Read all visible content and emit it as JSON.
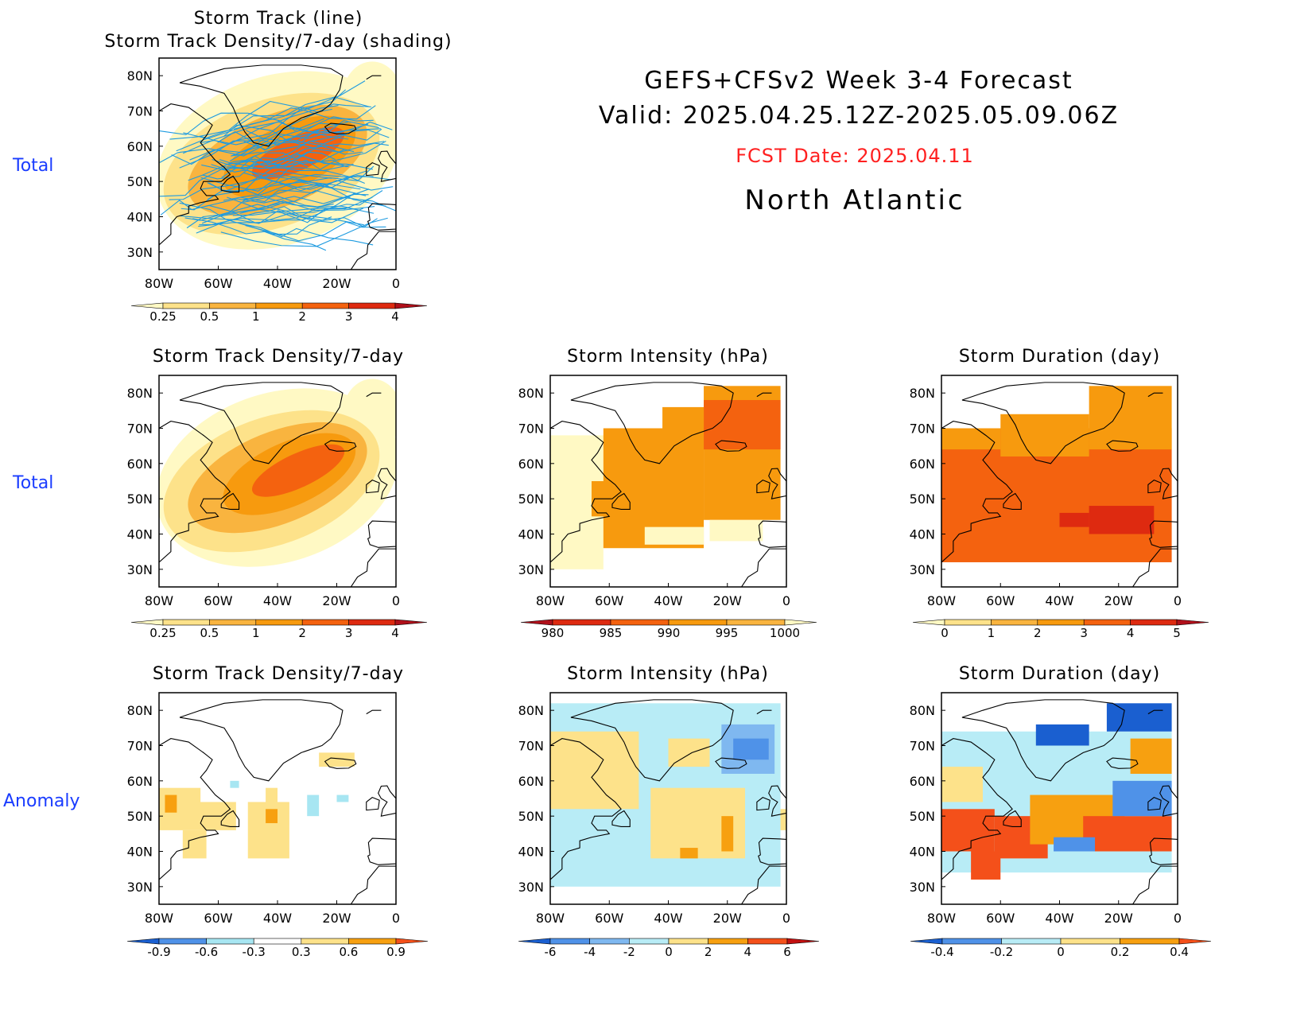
{
  "header": {
    "line1": "GEFS+CFSv2 Week 3-4 Forecast",
    "line2": "Valid: 2025.04.25.12Z-2025.05.09.06Z",
    "fcst": "FCST Date: 2025.04.11",
    "region": "North Atlantic",
    "fcst_color": "#ff2020"
  },
  "row_labels": [
    "Total",
    "Total",
    "Anomaly"
  ],
  "axis": {
    "lat_ticks": [
      "30N",
      "40N",
      "50N",
      "60N",
      "70N",
      "80N"
    ],
    "lon_ticks": [
      "80W",
      "60W",
      "40W",
      "20W",
      "0"
    ]
  },
  "panels": [
    {
      "id": "p1",
      "title_lines": [
        "Storm Track (line)",
        "Storm Track Density/7-day (shading)"
      ],
      "field": "density_total",
      "tracks": true,
      "colorbar": "cb_density"
    },
    {
      "id": "p2",
      "title_lines": [
        "Storm Track Density/7-day"
      ],
      "field": "density_total",
      "tracks": false,
      "colorbar": "cb_density"
    },
    {
      "id": "p3",
      "title_lines": [
        "Storm Intensity (hPa)"
      ],
      "field": "intensity_total",
      "tracks": false,
      "colorbar": "cb_intensity"
    },
    {
      "id": "p4",
      "title_lines": [
        "Storm Duration (day)"
      ],
      "field": "duration_total",
      "tracks": false,
      "colorbar": "cb_duration"
    },
    {
      "id": "p5",
      "title_lines": [
        "Storm Track Density/7-day"
      ],
      "field": "density_anom",
      "tracks": false,
      "colorbar": "cb_density_anom"
    },
    {
      "id": "p6",
      "title_lines": [
        "Storm Intensity (hPa)"
      ],
      "field": "intensity_anom",
      "tracks": false,
      "colorbar": "cb_intensity_anom"
    },
    {
      "id": "p7",
      "title_lines": [
        "Storm Duration (day)"
      ],
      "field": "duration_anom",
      "tracks": false,
      "colorbar": "cb_duration_anom"
    }
  ],
  "colorbars": {
    "cb_density": {
      "labels": [
        "0.25",
        "0.5",
        "1",
        "2",
        "3",
        "4"
      ],
      "colors": [
        "#fff9c4",
        "#fde28a",
        "#f9b43f",
        "#f79a0e",
        "#f4620f",
        "#de2a10",
        "#b0101a"
      ]
    },
    "cb_intensity": {
      "labels": [
        "980",
        "985",
        "990",
        "995",
        "1000"
      ],
      "colors": [
        "#b0101a",
        "#de2a10",
        "#f4620f",
        "#f79a0e",
        "#f9b43f",
        "#fff9c4"
      ]
    },
    "cb_duration": {
      "labels": [
        "0",
        "1",
        "2",
        "3",
        "4",
        "5"
      ],
      "colors": [
        "#fff9c4",
        "#fde28a",
        "#f9b43f",
        "#f79a0e",
        "#f4620f",
        "#de2a10",
        "#b0101a"
      ]
    },
    "cb_density_anom": {
      "labels": [
        "-0.9",
        "-0.6",
        "-0.3",
        "0.3",
        "0.6",
        "0.9"
      ],
      "colors": [
        "#1a5fd0",
        "#4f92e8",
        "#a7e6f2",
        "#ffffff",
        "#fde28a",
        "#f7a010",
        "#f4501a"
      ]
    },
    "cb_intensity_anom": {
      "labels": [
        "-6",
        "-4",
        "-2",
        "0",
        "2",
        "4",
        "6"
      ],
      "colors": [
        "#1a5fd0",
        "#4f92e8",
        "#7fb8f0",
        "#b8ecf6",
        "#fde28a",
        "#f7a010",
        "#f4501a",
        "#c21010"
      ]
    },
    "cb_duration_anom": {
      "labels": [
        "-0.4",
        "-0.2",
        "0",
        "0.2",
        "0.4"
      ],
      "colors": [
        "#1a5fd0",
        "#4f92e8",
        "#b8ecf6",
        "#fde28a",
        "#f7a010",
        "#f4501a"
      ]
    }
  },
  "colors": {
    "land_outline": "#000000",
    "track_line": "#1e9be0",
    "row_label": "#1a3cff"
  }
}
